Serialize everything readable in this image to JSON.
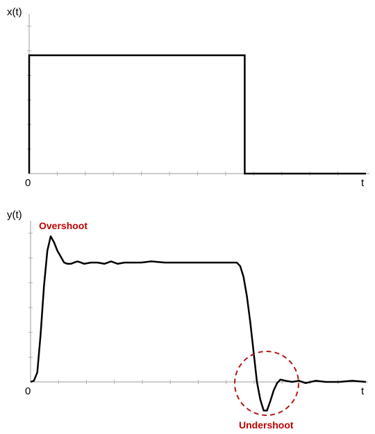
{
  "chart_data": [
    {
      "type": "line",
      "ylabel": "x(t)",
      "xlabel": "t",
      "origin_label": "0",
      "series": [
        {
          "x": [
            0,
            0,
            0.64,
            0.64,
            1.0
          ],
          "y": [
            0,
            1,
            1,
            0,
            0
          ]
        }
      ],
      "xlim": [
        0,
        1.0
      ],
      "ylim": [
        0,
        1.35
      ],
      "grid": false
    },
    {
      "type": "line",
      "ylabel": "y(t)",
      "xlabel": "t",
      "origin_label": "0",
      "annotations": [
        {
          "text": "Overshoot",
          "color": "#c00000"
        },
        {
          "text": "Undershoot",
          "color": "#c00000"
        }
      ],
      "series": [
        {
          "x": [
            0,
            0.01,
            0.02,
            0.03,
            0.04,
            0.05,
            0.06,
            0.07,
            0.08,
            0.09,
            0.1,
            0.11,
            0.12,
            0.13,
            0.14,
            0.15,
            0.16,
            0.18,
            0.2,
            0.22,
            0.24,
            0.26,
            0.28,
            0.3,
            0.33,
            0.36,
            0.4,
            0.45,
            0.5,
            0.55,
            0.6,
            0.615,
            0.625,
            0.635,
            0.645,
            0.655,
            0.665,
            0.675,
            0.685,
            0.695,
            0.705,
            0.715,
            0.725,
            0.735,
            0.745,
            0.76,
            0.78,
            0.8,
            0.82,
            0.85,
            0.88,
            0.92,
            0.96,
            1.0
          ],
          "y": [
            0,
            0.01,
            0.08,
            0.4,
            0.8,
            1.1,
            1.22,
            1.17,
            1.1,
            1.05,
            1.0,
            0.99,
            0.99,
            1.0,
            1.01,
            1.0,
            0.99,
            1.0,
            1.0,
            0.99,
            1.01,
            0.99,
            1.0,
            1.0,
            1.0,
            1.01,
            1.0,
            1.0,
            1.0,
            1.0,
            1.0,
            1.0,
            0.97,
            0.88,
            0.72,
            0.5,
            0.25,
            0.0,
            -0.15,
            -0.24,
            -0.24,
            -0.16,
            -0.07,
            -0.01,
            0.02,
            0.01,
            0.0,
            0.01,
            -0.01,
            0.01,
            0.0,
            0.0,
            0.01,
            0.0
          ]
        }
      ],
      "xlim": [
        0,
        1.0
      ],
      "ylim": [
        -0.35,
        1.35
      ],
      "grid": false
    }
  ]
}
